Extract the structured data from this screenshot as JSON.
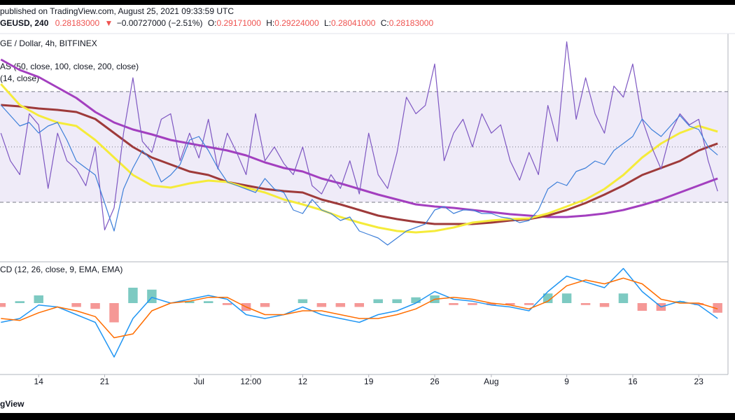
{
  "header": {
    "published": "published on TradingView.com, August 25, 2021 09:33:59 UTC",
    "symbol": "GEUSD, 240",
    "last": "0.28183000",
    "arrow": "▼",
    "change": "−0.00727000 (−2.51%)",
    "o_label": "O:",
    "o": "0.29171000",
    "h_label": "H:",
    "h": "0.29224000",
    "l_label": "L:",
    "l": "0.28041000",
    "c_label": "C:",
    "c": "0.28183000"
  },
  "chart_data": [
    {
      "type": "line",
      "title": "GE / Dollar, 4h, BITFINEX",
      "indicators": [
        "AS (50, close, 100, close, 200, close)",
        "(14, close)"
      ],
      "xlim": [
        9.9,
        87.1
      ],
      "ylim": [
        0.2075,
        0.365
      ],
      "y2lim": [
        9.5,
        89.2
      ],
      "y2_band": [
        30,
        70
      ],
      "y2_mid": 50,
      "band_color": "#7e57c2",
      "series": [
        {
          "color": "#a33fbf",
          "width": 3,
          "x": [
            10,
            12,
            14,
            16,
            18,
            20,
            22,
            24,
            26,
            28,
            30,
            32,
            34,
            36,
            38,
            40,
            42,
            44,
            46,
            48,
            50,
            52,
            54,
            56,
            58,
            60,
            62,
            64,
            66,
            68,
            70,
            72,
            74,
            76,
            78,
            80,
            82,
            84,
            86
          ],
          "values": [
            0.35,
            0.3425,
            0.3375,
            0.33,
            0.3225,
            0.3125,
            0.305,
            0.3,
            0.2965,
            0.2925,
            0.29,
            0.2875,
            0.285,
            0.2815,
            0.2765,
            0.2725,
            0.27,
            0.265,
            0.2615,
            0.2575,
            0.2535,
            0.25,
            0.2465,
            0.245,
            0.244,
            0.2425,
            0.241,
            0.2395,
            0.2385,
            0.2375,
            0.2375,
            0.2385,
            0.24,
            0.2425,
            0.246,
            0.25,
            0.255,
            0.26,
            0.265
          ]
        },
        {
          "color": "#9e3a3a",
          "width": 3,
          "x": [
            10,
            12,
            14,
            16,
            18,
            20,
            22,
            24,
            26,
            28,
            30,
            32,
            34,
            36,
            38,
            40,
            42,
            44,
            46,
            48,
            50,
            52,
            54,
            56,
            58,
            60,
            62,
            64,
            66,
            68,
            70,
            72,
            74,
            76,
            78,
            80,
            82,
            84,
            86
          ],
          "values": [
            0.3175,
            0.3165,
            0.315,
            0.314,
            0.3125,
            0.3075,
            0.2975,
            0.2875,
            0.28,
            0.275,
            0.27,
            0.2675,
            0.2625,
            0.26,
            0.2575,
            0.256,
            0.255,
            0.25,
            0.2465,
            0.2425,
            0.2385,
            0.236,
            0.234,
            0.2325,
            0.2325,
            0.2325,
            0.2335,
            0.235,
            0.236,
            0.2385,
            0.2425,
            0.2475,
            0.2535,
            0.26,
            0.2675,
            0.2725,
            0.2775,
            0.285,
            0.29
          ]
        },
        {
          "color": "#f5eb3a",
          "width": 3,
          "x": [
            10,
            12,
            14,
            16,
            18,
            20,
            22,
            24,
            26,
            28,
            30,
            32,
            34,
            36,
            38,
            40,
            42,
            44,
            46,
            48,
            50,
            52,
            54,
            56,
            58,
            60,
            62,
            64,
            66,
            68,
            70,
            72,
            74,
            76,
            78,
            80,
            82,
            84,
            86
          ],
          "values": [
            0.3325,
            0.3175,
            0.31,
            0.305,
            0.3025,
            0.2925,
            0.28,
            0.2675,
            0.26,
            0.2585,
            0.2615,
            0.2635,
            0.2625,
            0.2585,
            0.255,
            0.25,
            0.2465,
            0.2425,
            0.2375,
            0.2335,
            0.23,
            0.2275,
            0.2265,
            0.2275,
            0.23,
            0.2335,
            0.235,
            0.236,
            0.2365,
            0.24,
            0.245,
            0.25,
            0.2575,
            0.2675,
            0.28,
            0.29,
            0.2975,
            0.3025,
            0.2985
          ]
        },
        {
          "color": "#7e57c2",
          "width": 1.2,
          "axis": "y2",
          "x": [
            10,
            11,
            12,
            13,
            14,
            15,
            16,
            17,
            18,
            19,
            20,
            21,
            22,
            23,
            24,
            25,
            26,
            27,
            28,
            29,
            30,
            31,
            32,
            33,
            34,
            35,
            36,
            37,
            38,
            39,
            40,
            41,
            42,
            43,
            44,
            45,
            46,
            47,
            48,
            49,
            50,
            51,
            52,
            53,
            54,
            55,
            56,
            57,
            58,
            59,
            60,
            61,
            62,
            63,
            64,
            65,
            66,
            67,
            68,
            69,
            70,
            71,
            72,
            73,
            74,
            75,
            76,
            77,
            78,
            79,
            80,
            81,
            82,
            83,
            84,
            85,
            86
          ],
          "values": [
            55,
            45,
            40,
            62,
            58,
            35,
            55,
            45,
            42,
            36,
            50,
            20,
            28,
            55,
            75,
            52,
            48,
            60,
            62,
            45,
            55,
            46,
            60,
            42,
            55,
            48,
            40,
            62,
            45,
            50,
            44,
            40,
            50,
            36,
            33,
            40,
            35,
            45,
            33,
            55,
            40,
            35,
            48,
            68,
            62,
            65,
            80,
            45,
            55,
            60,
            50,
            62,
            55,
            58,
            45,
            38,
            48,
            40,
            65,
            52,
            88,
            60,
            75,
            62,
            55,
            72,
            68,
            80,
            60,
            50,
            42,
            55,
            62,
            58,
            60,
            45,
            34
          ]
        },
        {
          "color": "#3d7fd9",
          "width": 1.2,
          "x": [
            10,
            11,
            12,
            13,
            14,
            15,
            16,
            17,
            18,
            19,
            20,
            21,
            22,
            23,
            24,
            25,
            26,
            27,
            28,
            29,
            30,
            31,
            32,
            33,
            34,
            35,
            36,
            37,
            38,
            39,
            40,
            41,
            42,
            43,
            44,
            45,
            46,
            47,
            48,
            49,
            50,
            51,
            52,
            53,
            54,
            55,
            56,
            57,
            58,
            59,
            60,
            61,
            62,
            63,
            64,
            65,
            66,
            67,
            68,
            69,
            70,
            71,
            72,
            73,
            74,
            75,
            76,
            77,
            78,
            79,
            80,
            81,
            82,
            83,
            84,
            85,
            86
          ],
          "values": [
            0.3175,
            0.31,
            0.3025,
            0.305,
            0.2975,
            0.3025,
            0.305,
            0.2925,
            0.2775,
            0.2725,
            0.2675,
            0.2475,
            0.2275,
            0.2575,
            0.2725,
            0.285,
            0.2775,
            0.2625,
            0.2675,
            0.275,
            0.2925,
            0.295,
            0.285,
            0.2725,
            0.2625,
            0.26,
            0.2575,
            0.255,
            0.265,
            0.2575,
            0.255,
            0.2425,
            0.24,
            0.25,
            0.2425,
            0.24,
            0.235,
            0.2375,
            0.2275,
            0.225,
            0.2225,
            0.2175,
            0.2225,
            0.2275,
            0.23,
            0.2325,
            0.2425,
            0.245,
            0.24,
            0.2425,
            0.2425,
            0.24,
            0.24,
            0.2375,
            0.2365,
            0.2335,
            0.235,
            0.2425,
            0.2575,
            0.2625,
            0.26,
            0.27,
            0.2725,
            0.2775,
            0.275,
            0.285,
            0.29,
            0.295,
            0.3075,
            0.3,
            0.295,
            0.3025,
            0.31,
            0.3025,
            0.3,
            0.2875,
            0.2818
          ]
        }
      ]
    },
    {
      "type": "line",
      "title": "CD (12, 26, close, 9, EMA, EMA)",
      "xlim": [
        9.9,
        87.1
      ],
      "ylim": [
        -18,
        10
      ],
      "xticks": [
        14,
        21,
        {
          "value": 31,
          "label": "Jul"
        },
        {
          "value": 36.5,
          "label": "12:00"
        },
        {
          "value": 42,
          "label": "12"
        },
        {
          "value": 49,
          "label": "19"
        },
        {
          "value": 56,
          "label": "26"
        },
        {
          "value": 62,
          "label": "Aug"
        },
        {
          "value": 70,
          "label": "9"
        },
        {
          "value": 77,
          "label": "16"
        },
        {
          "value": 84,
          "label": "23"
        }
      ],
      "series": [
        {
          "type": "bar",
          "colors": [
            "#26a69a",
            "#ef5350"
          ],
          "x": [
            10,
            12,
            14,
            16,
            18,
            20,
            22,
            24,
            26,
            28,
            30,
            32,
            34,
            36,
            38,
            40,
            42,
            44,
            46,
            48,
            50,
            52,
            54,
            56,
            58,
            60,
            62,
            64,
            66,
            68,
            70,
            72,
            74,
            76,
            78,
            80,
            82,
            84,
            86
          ],
          "values": [
            -1,
            0.5,
            2,
            0,
            -1,
            -1.5,
            -5,
            4,
            3.5,
            0,
            0.5,
            0.5,
            -0.5,
            -2,
            -1,
            0,
            1,
            -1,
            -1,
            -1,
            1,
            1,
            1.5,
            2,
            -0.5,
            -0.5,
            -0.5,
            -0.5,
            -0.5,
            2.5,
            2.5,
            -0.5,
            -1,
            2.5,
            -2,
            -2,
            0.5,
            -0.5,
            -2.5
          ]
        },
        {
          "color": "#2196f3",
          "width": 1.5,
          "x": [
            10,
            12,
            14,
            16,
            18,
            20,
            22,
            24,
            26,
            28,
            30,
            32,
            34,
            36,
            38,
            40,
            42,
            44,
            46,
            48,
            50,
            52,
            54,
            56,
            58,
            60,
            62,
            64,
            66,
            68,
            70,
            72,
            74,
            76,
            78,
            80,
            82,
            84,
            86
          ],
          "values": [
            -5,
            -4,
            -0.5,
            -1,
            -3,
            -5,
            -14,
            -4,
            1.5,
            0,
            1,
            2,
            1,
            -3,
            -4,
            -3,
            -1,
            -3,
            -4,
            -5,
            -3,
            -2,
            0,
            3,
            1,
            0.5,
            -0.5,
            -1,
            -2,
            3,
            7,
            5.5,
            4,
            9,
            3,
            -1,
            0.5,
            -0.5,
            -4
          ]
        },
        {
          "color": "#ff6d00",
          "width": 1.5,
          "x": [
            10,
            12,
            14,
            16,
            18,
            20,
            22,
            24,
            26,
            28,
            30,
            32,
            34,
            36,
            38,
            40,
            42,
            44,
            46,
            48,
            50,
            52,
            54,
            56,
            58,
            60,
            62,
            64,
            66,
            68,
            70,
            72,
            74,
            76,
            78,
            80,
            82,
            84,
            86
          ],
          "values": [
            -4,
            -4.5,
            -2.5,
            -1,
            -2,
            -3.5,
            -9,
            -8,
            -2,
            0,
            0.5,
            1.5,
            1.5,
            -1,
            -3,
            -3,
            -2,
            -2,
            -3,
            -4,
            -4,
            -3,
            -1.5,
            1,
            1.5,
            1,
            0,
            -0.5,
            -1.5,
            0.5,
            4.5,
            6,
            5,
            6.5,
            5,
            1,
            0,
            0,
            -1.5
          ]
        }
      ]
    }
  ],
  "footer": "gView"
}
